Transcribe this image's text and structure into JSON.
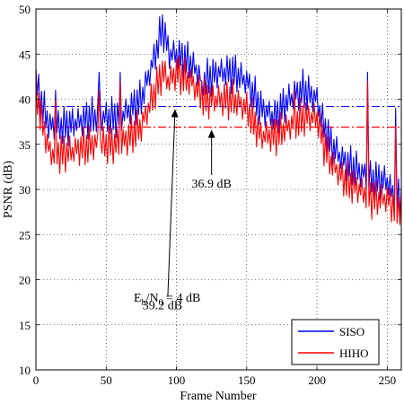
{
  "chart_data": {
    "type": "line",
    "xlabel": "Frame Number",
    "ylabel": "PSNR (dB)",
    "xlim": [
      0,
      260
    ],
    "ylim": [
      10,
      50
    ],
    "xticks": [
      0,
      50,
      100,
      150,
      200,
      250
    ],
    "yticks": [
      10,
      15,
      20,
      25,
      30,
      35,
      40,
      45,
      50
    ],
    "grid": true,
    "legend_position": "bottom-right",
    "series": [
      {
        "name": "SISO",
        "color": "#0000ff",
        "keypoints": [
          [
            0,
            42
          ],
          [
            5,
            39
          ],
          [
            10,
            37
          ],
          [
            20,
            37
          ],
          [
            40,
            38
          ],
          [
            60,
            38
          ],
          [
            75,
            40
          ],
          [
            85,
            45
          ],
          [
            90,
            48
          ],
          [
            95,
            45
          ],
          [
            100,
            45
          ],
          [
            110,
            44
          ],
          [
            120,
            42
          ],
          [
            130,
            43
          ],
          [
            140,
            43
          ],
          [
            150,
            42
          ],
          [
            160,
            39
          ],
          [
            170,
            38
          ],
          [
            180,
            40
          ],
          [
            190,
            41
          ],
          [
            200,
            40
          ],
          [
            205,
            37
          ],
          [
            210,
            35
          ],
          [
            220,
            33
          ],
          [
            230,
            32
          ],
          [
            240,
            31
          ],
          [
            250,
            31
          ],
          [
            255,
            29
          ],
          [
            260,
            29
          ]
        ],
        "spikes": [
          [
            14,
            41
          ],
          [
            45,
            43
          ],
          [
            60,
            43
          ],
          [
            118,
            42
          ],
          [
            184,
            42
          ],
          [
            236,
            43
          ],
          [
            256,
            39
          ]
        ]
      },
      {
        "name": "HIHO",
        "color": "#ff0000",
        "keypoints": [
          [
            0,
            41
          ],
          [
            5,
            37
          ],
          [
            10,
            34
          ],
          [
            20,
            34
          ],
          [
            40,
            35
          ],
          [
            60,
            35
          ],
          [
            75,
            37
          ],
          [
            85,
            41
          ],
          [
            90,
            43
          ],
          [
            95,
            42
          ],
          [
            100,
            43
          ],
          [
            110,
            42
          ],
          [
            120,
            40
          ],
          [
            130,
            40
          ],
          [
            140,
            40
          ],
          [
            150,
            39
          ],
          [
            160,
            36
          ],
          [
            170,
            36
          ],
          [
            180,
            37
          ],
          [
            190,
            38
          ],
          [
            200,
            38
          ],
          [
            205,
            35
          ],
          [
            210,
            33
          ],
          [
            220,
            31
          ],
          [
            230,
            30
          ],
          [
            240,
            29
          ],
          [
            250,
            29
          ],
          [
            255,
            28
          ],
          [
            260,
            28
          ]
        ],
        "spikes": [
          [
            14,
            40
          ],
          [
            45,
            41
          ],
          [
            60,
            42
          ],
          [
            118,
            42
          ],
          [
            184,
            41
          ],
          [
            236,
            42
          ],
          [
            256,
            37
          ]
        ]
      }
    ],
    "reference_lines": [
      {
        "y": 39.2,
        "color": "#0000ff"
      },
      {
        "y": 36.9,
        "color": "#ff0000"
      }
    ],
    "annotations": [
      {
        "text": "39.2 dB",
        "x": 90,
        "y": 16.7,
        "arrow_to": [
          99,
          39.2
        ]
      },
      {
        "text": "36.9 dB",
        "x": 125,
        "y": 30.2,
        "arrow_to": [
          125,
          36.9
        ]
      }
    ],
    "text_annotation": {
      "main": "E",
      "sub1": "b",
      "mid": "/N",
      "sub2": "0",
      "tail": " = 4 dB"
    }
  }
}
